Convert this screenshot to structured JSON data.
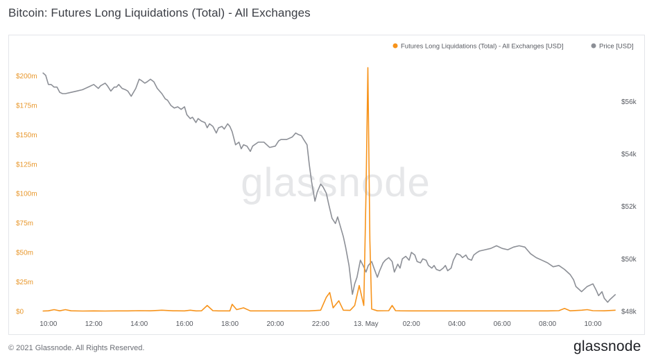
{
  "page": {
    "title": "Bitcoin: Futures Long Liquidations (Total) - All Exchanges",
    "copyright": "© 2021 Glassnode. All Rights Reserved.",
    "brand": "glassnode",
    "watermark": "glassnode"
  },
  "colors": {
    "liquidations": "#f7931a",
    "price": "#8c8f96",
    "left_axis_text": "#e8972b",
    "right_axis_text": "#55585f"
  },
  "chart_data": {
    "type": "line",
    "title": "Bitcoin: Futures Long Liquidations (Total) - All Exchanges",
    "legend_position": "top-right",
    "grid": false,
    "x_tick_labels": [
      "10:00",
      "12:00",
      "14:00",
      "16:00",
      "18:00",
      "20:00",
      "22:00",
      "13. May",
      "02:00",
      "04:00",
      "06:00",
      "08:00",
      "10:00"
    ],
    "x_tick_hours": [
      10,
      12,
      14,
      16,
      18,
      20,
      22,
      24,
      26,
      28,
      30,
      32,
      34
    ],
    "x_range_hours": [
      9.67,
      35.1
    ],
    "y_left": {
      "label": "",
      "tick_labels": [
        "$0",
        "$25m",
        "$50m",
        "$75m",
        "$100m",
        "$125m",
        "$150m",
        "$175m",
        "$200m"
      ],
      "ticks": [
        0,
        25,
        50,
        75,
        100,
        125,
        150,
        175,
        200
      ],
      "range": [
        0,
        205
      ],
      "unit": "million USD"
    },
    "y_right": {
      "label": "",
      "tick_labels": [
        "$48k",
        "$50k",
        "$52k",
        "$54k",
        "$56k"
      ],
      "ticks": [
        48,
        50,
        52,
        54,
        56
      ],
      "range": [
        48,
        57.2
      ],
      "unit": "thousand USD"
    },
    "series": [
      {
        "name": "Futures Long Liquidations (Total) - All Exchanges [USD]",
        "axis": "left",
        "points": [
          [
            9.75,
            0.3
          ],
          [
            10.0,
            0.5
          ],
          [
            10.25,
            1.5
          ],
          [
            10.5,
            0.5
          ],
          [
            10.75,
            1.5
          ],
          [
            11.0,
            0.5
          ],
          [
            11.5,
            0.3
          ],
          [
            12.0,
            0.4
          ],
          [
            12.5,
            0.3
          ],
          [
            13.0,
            0.4
          ],
          [
            13.5,
            0.4
          ],
          [
            14.0,
            0.6
          ],
          [
            14.5,
            0.5
          ],
          [
            15.0,
            1.0
          ],
          [
            15.5,
            0.5
          ],
          [
            16.0,
            0.4
          ],
          [
            16.25,
            1.0
          ],
          [
            16.5,
            0.4
          ],
          [
            16.75,
            0.5
          ],
          [
            17.0,
            5.0
          ],
          [
            17.25,
            0.6
          ],
          [
            17.5,
            0.4
          ],
          [
            18.0,
            0.4
          ],
          [
            18.1,
            6.0
          ],
          [
            18.3,
            1.5
          ],
          [
            18.6,
            3.0
          ],
          [
            18.9,
            0.4
          ],
          [
            19.5,
            0.4
          ],
          [
            20.0,
            0.4
          ],
          [
            20.5,
            0.4
          ],
          [
            21.0,
            0.4
          ],
          [
            21.5,
            0.4
          ],
          [
            22.0,
            1.0
          ],
          [
            22.25,
            12.0
          ],
          [
            22.4,
            16.0
          ],
          [
            22.55,
            3.0
          ],
          [
            22.8,
            9.0
          ],
          [
            23.0,
            1.0
          ],
          [
            23.3,
            0.8
          ],
          [
            23.5,
            5.0
          ],
          [
            23.7,
            22.0
          ],
          [
            23.9,
            5.0
          ],
          [
            24.0,
            100.0
          ],
          [
            24.08,
            207.0
          ],
          [
            24.17,
            60.0
          ],
          [
            24.25,
            2.0
          ],
          [
            24.5,
            0.5
          ],
          [
            25.0,
            0.6
          ],
          [
            25.15,
            5.0
          ],
          [
            25.3,
            0.6
          ],
          [
            25.5,
            0.5
          ],
          [
            26.0,
            0.4
          ],
          [
            27.0,
            0.4
          ],
          [
            28.0,
            0.4
          ],
          [
            29.0,
            0.4
          ],
          [
            30.0,
            0.4
          ],
          [
            31.0,
            0.4
          ],
          [
            32.0,
            0.4
          ],
          [
            32.5,
            0.6
          ],
          [
            32.75,
            2.5
          ],
          [
            33.0,
            0.5
          ],
          [
            33.5,
            1.0
          ],
          [
            33.75,
            1.5
          ],
          [
            34.0,
            0.6
          ],
          [
            34.5,
            0.5
          ],
          [
            35.0,
            1.0
          ]
        ]
      },
      {
        "name": "Price [USD]",
        "axis": "right",
        "points": [
          [
            9.75,
            57.1
          ],
          [
            9.88,
            57.0
          ],
          [
            10.0,
            56.65
          ],
          [
            10.12,
            56.65
          ],
          [
            10.25,
            56.55
          ],
          [
            10.38,
            56.55
          ],
          [
            10.5,
            56.35
          ],
          [
            10.62,
            56.3
          ],
          [
            10.75,
            56.3
          ],
          [
            11.0,
            56.35
          ],
          [
            11.25,
            56.4
          ],
          [
            11.5,
            56.45
          ],
          [
            11.75,
            56.55
          ],
          [
            12.0,
            56.65
          ],
          [
            12.2,
            56.5
          ],
          [
            12.3,
            56.6
          ],
          [
            12.5,
            56.7
          ],
          [
            12.6,
            56.6
          ],
          [
            12.75,
            56.4
          ],
          [
            12.9,
            56.55
          ],
          [
            13.0,
            56.55
          ],
          [
            13.1,
            56.65
          ],
          [
            13.25,
            56.5
          ],
          [
            13.4,
            56.45
          ],
          [
            13.5,
            56.4
          ],
          [
            13.65,
            56.2
          ],
          [
            13.85,
            56.5
          ],
          [
            14.0,
            56.85
          ],
          [
            14.1,
            56.8
          ],
          [
            14.25,
            56.7
          ],
          [
            14.35,
            56.75
          ],
          [
            14.5,
            56.85
          ],
          [
            14.65,
            56.75
          ],
          [
            14.8,
            56.5
          ],
          [
            15.0,
            56.3
          ],
          [
            15.15,
            56.1
          ],
          [
            15.25,
            56.05
          ],
          [
            15.4,
            55.85
          ],
          [
            15.55,
            55.75
          ],
          [
            15.7,
            55.8
          ],
          [
            15.85,
            55.7
          ],
          [
            16.0,
            55.8
          ],
          [
            16.1,
            55.5
          ],
          [
            16.25,
            55.35
          ],
          [
            16.35,
            55.4
          ],
          [
            16.5,
            55.2
          ],
          [
            16.6,
            55.35
          ],
          [
            16.75,
            55.25
          ],
          [
            16.9,
            55.2
          ],
          [
            17.0,
            55.0
          ],
          [
            17.1,
            55.15
          ],
          [
            17.25,
            55.05
          ],
          [
            17.4,
            54.8
          ],
          [
            17.5,
            55.0
          ],
          [
            17.65,
            55.05
          ],
          [
            17.75,
            54.95
          ],
          [
            17.9,
            55.15
          ],
          [
            18.0,
            55.05
          ],
          [
            18.1,
            54.85
          ],
          [
            18.25,
            54.35
          ],
          [
            18.4,
            54.45
          ],
          [
            18.5,
            54.2
          ],
          [
            18.6,
            54.35
          ],
          [
            18.75,
            54.3
          ],
          [
            18.9,
            54.1
          ],
          [
            19.0,
            54.3
          ],
          [
            19.25,
            54.45
          ],
          [
            19.5,
            54.45
          ],
          [
            19.75,
            54.25
          ],
          [
            20.0,
            54.3
          ],
          [
            20.15,
            54.5
          ],
          [
            20.25,
            54.55
          ],
          [
            20.5,
            54.55
          ],
          [
            20.75,
            54.65
          ],
          [
            20.9,
            54.8
          ],
          [
            21.0,
            54.75
          ],
          [
            21.15,
            54.7
          ],
          [
            21.25,
            54.55
          ],
          [
            21.4,
            54.35
          ],
          [
            21.5,
            53.6
          ],
          [
            21.6,
            52.95
          ],
          [
            21.75,
            52.2
          ],
          [
            21.85,
            52.55
          ],
          [
            22.0,
            52.85
          ],
          [
            22.1,
            52.75
          ],
          [
            22.25,
            52.5
          ],
          [
            22.35,
            52.1
          ],
          [
            22.5,
            51.55
          ],
          [
            22.65,
            51.35
          ],
          [
            22.75,
            51.6
          ],
          [
            23.0,
            50.85
          ],
          [
            23.1,
            50.45
          ],
          [
            23.25,
            49.75
          ],
          [
            23.4,
            48.65
          ],
          [
            23.5,
            49.05
          ],
          [
            23.6,
            49.3
          ],
          [
            23.75,
            49.95
          ],
          [
            23.9,
            49.7
          ],
          [
            24.0,
            49.5
          ],
          [
            24.1,
            49.75
          ],
          [
            24.25,
            49.9
          ],
          [
            24.35,
            49.65
          ],
          [
            24.5,
            49.3
          ],
          [
            24.6,
            49.55
          ],
          [
            24.75,
            49.85
          ],
          [
            24.85,
            49.95
          ],
          [
            25.0,
            50.05
          ],
          [
            25.15,
            49.9
          ],
          [
            25.25,
            49.5
          ],
          [
            25.4,
            49.8
          ],
          [
            25.5,
            49.65
          ],
          [
            25.6,
            50.0
          ],
          [
            25.75,
            50.1
          ],
          [
            25.9,
            49.95
          ],
          [
            26.0,
            50.25
          ],
          [
            26.15,
            50.15
          ],
          [
            26.25,
            49.9
          ],
          [
            26.4,
            49.85
          ],
          [
            26.5,
            50.0
          ],
          [
            26.65,
            49.95
          ],
          [
            26.75,
            49.75
          ],
          [
            26.9,
            49.65
          ],
          [
            27.0,
            49.75
          ],
          [
            27.1,
            49.6
          ],
          [
            27.25,
            49.55
          ],
          [
            27.4,
            49.65
          ],
          [
            27.5,
            49.75
          ],
          [
            27.6,
            49.55
          ],
          [
            27.75,
            49.65
          ],
          [
            27.85,
            49.95
          ],
          [
            28.0,
            50.2
          ],
          [
            28.15,
            50.15
          ],
          [
            28.25,
            50.05
          ],
          [
            28.4,
            50.15
          ],
          [
            28.5,
            50.0
          ],
          [
            28.65,
            49.95
          ],
          [
            28.75,
            50.15
          ],
          [
            28.9,
            50.25
          ],
          [
            29.0,
            50.3
          ],
          [
            29.25,
            50.35
          ],
          [
            29.5,
            50.4
          ],
          [
            29.75,
            50.5
          ],
          [
            30.0,
            50.4
          ],
          [
            30.25,
            50.35
          ],
          [
            30.5,
            50.45
          ],
          [
            30.75,
            50.5
          ],
          [
            31.0,
            50.45
          ],
          [
            31.25,
            50.2
          ],
          [
            31.5,
            50.05
          ],
          [
            31.75,
            49.95
          ],
          [
            32.0,
            49.85
          ],
          [
            32.25,
            49.7
          ],
          [
            32.5,
            49.75
          ],
          [
            32.75,
            49.6
          ],
          [
            33.0,
            49.4
          ],
          [
            33.15,
            49.2
          ],
          [
            33.25,
            48.95
          ],
          [
            33.5,
            48.75
          ],
          [
            33.75,
            48.95
          ],
          [
            34.0,
            49.05
          ],
          [
            34.15,
            48.8
          ],
          [
            34.25,
            48.6
          ],
          [
            34.4,
            48.75
          ],
          [
            34.5,
            48.5
          ],
          [
            34.65,
            48.35
          ],
          [
            34.75,
            48.45
          ],
          [
            35.0,
            48.65
          ]
        ]
      }
    ]
  }
}
